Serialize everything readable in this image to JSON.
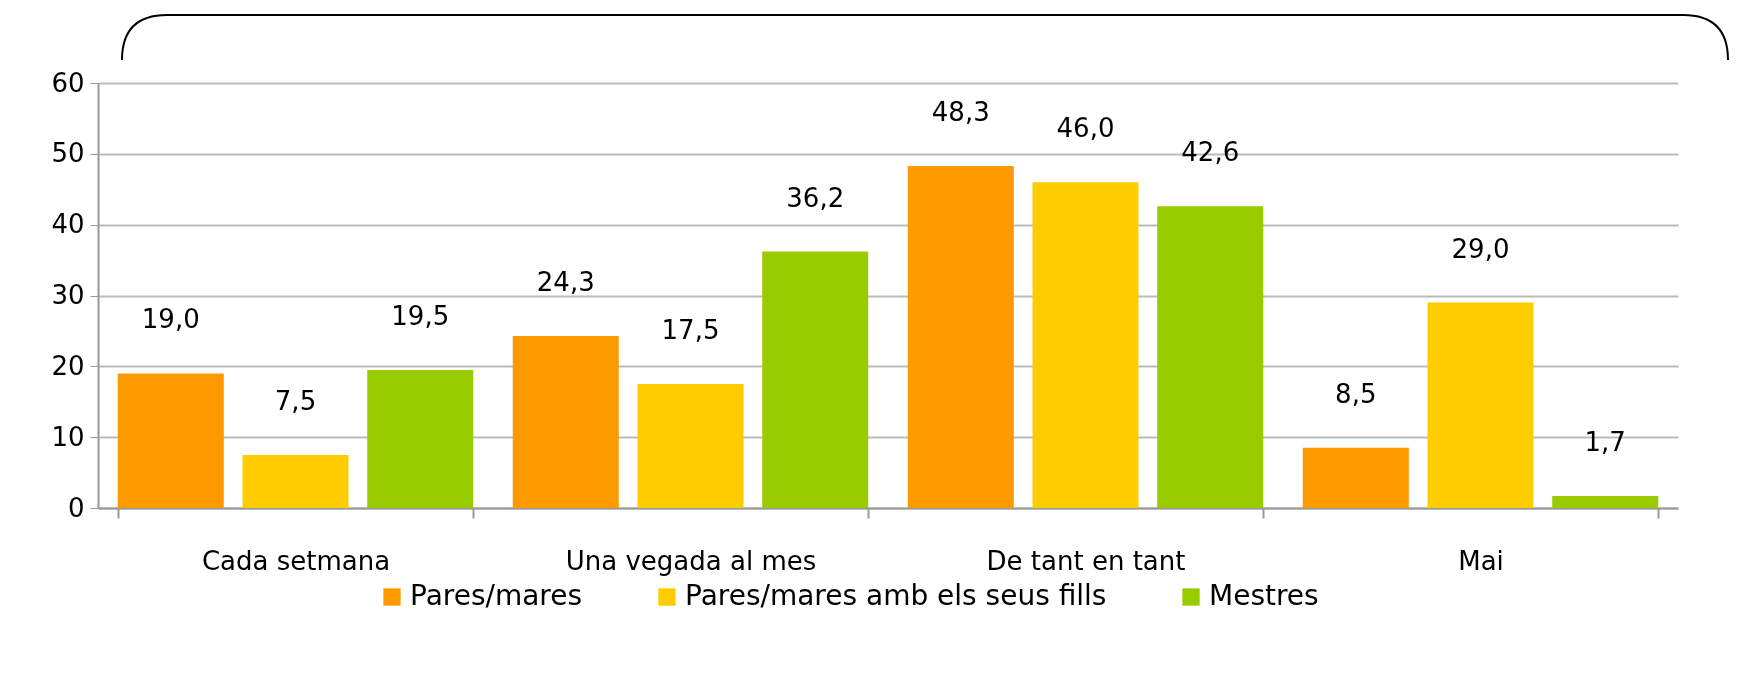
{
  "chart_data": {
    "type": "bar",
    "categories": [
      "Cada setmana",
      "Una vegada al mes",
      "De tant en tant",
      "Mai"
    ],
    "series": [
      {
        "name": "Pares/mares",
        "color": "#ff9900",
        "values": [
          19.0,
          24.3,
          48.3,
          8.5
        ],
        "value_labels": [
          "19,0",
          "24,3",
          "48,3",
          "8,5"
        ]
      },
      {
        "name": "Pares/mares amb els seus fills",
        "color": "#ffcc00",
        "values": [
          7.5,
          17.5,
          46.0,
          29.0
        ],
        "value_labels": [
          "7,5",
          "17,5",
          "46,0",
          "29,0"
        ]
      },
      {
        "name": "Mestres",
        "color": "#99cc00",
        "values": [
          19.5,
          36.2,
          42.6,
          1.7
        ],
        "value_labels": [
          "19,5",
          "36,2",
          "42,6",
          "1,7"
        ]
      }
    ],
    "ylim": [
      0,
      60
    ],
    "yticks": [
      0,
      10,
      20,
      30,
      40,
      50,
      60
    ],
    "grid": "y",
    "legend": "bottom"
  }
}
